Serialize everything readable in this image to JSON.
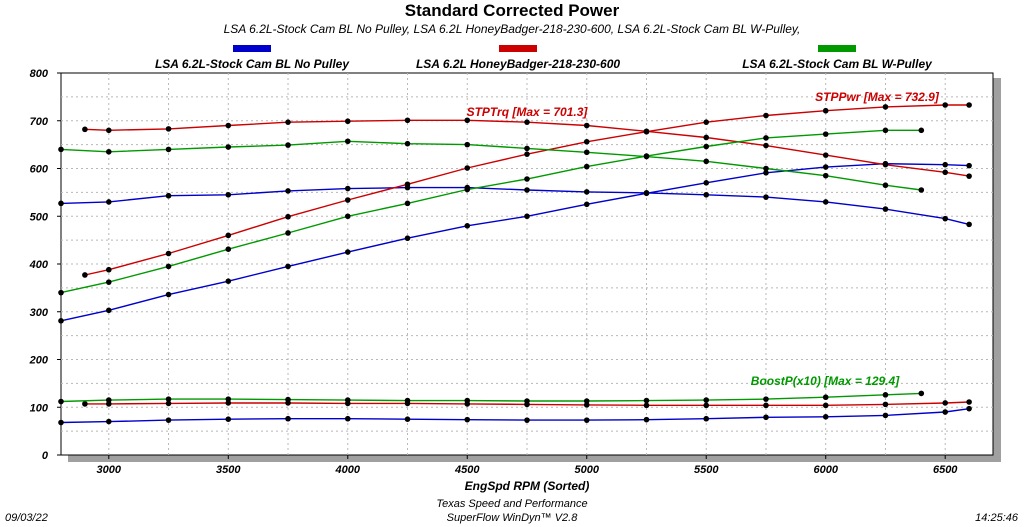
{
  "header": {
    "title": "Standard Corrected Power",
    "subtitle": "LSA 6.2L-Stock Cam BL No Pulley, LSA 6.2L HoneyBadger-218-230-600, LSA 6.2L-Stock Cam BL W-Pulley,"
  },
  "legend": [
    {
      "label": "LSA 6.2L-Stock Cam BL No Pulley",
      "color": "#0000cc"
    },
    {
      "label": "LSA 6.2L HoneyBadger-218-230-600",
      "color": "#cc0000"
    },
    {
      "label": "LSA 6.2L-Stock Cam BL W-Pulley",
      "color": "#009900"
    }
  ],
  "footer": {
    "date": "09/03/22",
    "time": "14:25:46",
    "company": "Texas Speed and Performance",
    "software": "SuperFlow WinDyn™  V2.8"
  },
  "chart_data": {
    "type": "line",
    "xlabel": "EngSpd  RPM   (Sorted)",
    "ylabel": "",
    "xlim": [
      2800,
      6700
    ],
    "ylim": [
      0,
      800
    ],
    "xticks": [
      3000,
      3500,
      4000,
      4500,
      5000,
      5500,
      6000,
      6500
    ],
    "yticks": [
      0,
      100,
      200,
      300,
      400,
      500,
      600,
      700,
      800
    ],
    "grid": true,
    "annotations": [
      {
        "text": "STPTrq [Max = 701.3]",
        "color": "#cc0000"
      },
      {
        "text": "STPPwr [Max = 732.9]",
        "color": "#cc0000"
      },
      {
        "text": "BoostP(x10) [Max = 129.4]",
        "color": "#009900"
      }
    ],
    "series": [
      {
        "name": "LSA 6.2L-Stock Cam BL No Pulley",
        "measure": "STPTrq",
        "color": "#0000cc",
        "x": [
          2800,
          3000,
          3250,
          3500,
          3750,
          4000,
          4250,
          4500,
          4750,
          5000,
          5250,
          5500,
          5750,
          6000,
          6250,
          6500,
          6600
        ],
        "y": [
          527,
          530,
          543,
          545,
          553,
          558,
          560,
          560,
          555,
          551,
          549,
          545,
          540,
          530,
          515,
          495,
          483
        ]
      },
      {
        "name": "LSA 6.2L-Stock Cam BL No Pulley",
        "measure": "STPPwr",
        "color": "#0000cc",
        "x": [
          2800,
          3000,
          3250,
          3500,
          3750,
          4000,
          4250,
          4500,
          4750,
          5000,
          5250,
          5500,
          5750,
          6000,
          6250,
          6500,
          6600
        ],
        "y": [
          281,
          303,
          336,
          364,
          395,
          425,
          454,
          480,
          500,
          525,
          548,
          570,
          591,
          603,
          610,
          608,
          606
        ]
      },
      {
        "name": "LSA 6.2L-Stock Cam BL No Pulley",
        "measure": "BoostP(x10)",
        "color": "#0000cc",
        "x": [
          2800,
          3000,
          3250,
          3500,
          3750,
          4000,
          4250,
          4500,
          4750,
          5000,
          5250,
          5500,
          5750,
          6000,
          6250,
          6500,
          6600
        ],
        "y": [
          68,
          70,
          73,
          75,
          76,
          76,
          75,
          74,
          73,
          73,
          74,
          76,
          79,
          80,
          83,
          90,
          97
        ]
      },
      {
        "name": "LSA 6.2L HoneyBadger-218-230-600",
        "measure": "STPTrq",
        "color": "#cc0000",
        "x": [
          2900,
          3000,
          3250,
          3500,
          3750,
          4000,
          4250,
          4500,
          4750,
          5000,
          5250,
          5500,
          5750,
          6000,
          6250,
          6500,
          6600
        ],
        "y": [
          682,
          680,
          683,
          690,
          697,
          699,
          701,
          701,
          697,
          690,
          678,
          665,
          648,
          628,
          608,
          592,
          584
        ]
      },
      {
        "name": "LSA 6.2L HoneyBadger-218-230-600",
        "measure": "STPPwr",
        "color": "#cc0000",
        "x": [
          2900,
          3000,
          3250,
          3500,
          3750,
          4000,
          4250,
          4500,
          4750,
          5000,
          5250,
          5500,
          5750,
          6000,
          6250,
          6500,
          6600
        ],
        "y": [
          377,
          388,
          422,
          460,
          499,
          534,
          567,
          601,
          630,
          656,
          677,
          697,
          711,
          721,
          729,
          733,
          733
        ]
      },
      {
        "name": "LSA 6.2L HoneyBadger-218-230-600",
        "measure": "BoostP(x10)",
        "color": "#cc0000",
        "x": [
          2900,
          3000,
          3250,
          3500,
          3750,
          4000,
          4250,
          4500,
          4750,
          5000,
          5250,
          5500,
          5750,
          6000,
          6250,
          6500,
          6600
        ],
        "y": [
          107,
          107,
          108,
          109,
          109,
          108,
          108,
          107,
          106,
          105,
          104,
          104,
          104,
          104,
          106,
          109,
          111
        ]
      },
      {
        "name": "LSA 6.2L-Stock Cam BL W-Pulley",
        "measure": "STPTrq",
        "color": "#009900",
        "x": [
          2800,
          3000,
          3250,
          3500,
          3750,
          4000,
          4250,
          4500,
          4750,
          5000,
          5250,
          5500,
          5750,
          6000,
          6250,
          6400
        ],
        "y": [
          640,
          635,
          640,
          645,
          649,
          657,
          652,
          650,
          642,
          634,
          625,
          615,
          600,
          585,
          565,
          555
        ]
      },
      {
        "name": "LSA 6.2L-Stock Cam BL W-Pulley",
        "measure": "STPPwr",
        "color": "#009900",
        "x": [
          2800,
          3000,
          3250,
          3500,
          3750,
          4000,
          4250,
          4500,
          4750,
          5000,
          5250,
          5500,
          5750,
          6000,
          6250,
          6400
        ],
        "y": [
          340,
          362,
          395,
          431,
          465,
          500,
          527,
          556,
          578,
          604,
          626,
          646,
          664,
          672,
          680,
          680
        ]
      },
      {
        "name": "LSA 6.2L-Stock Cam BL W-Pulley",
        "measure": "BoostP(x10)",
        "color": "#009900",
        "x": [
          2800,
          3000,
          3250,
          3500,
          3750,
          4000,
          4250,
          4500,
          4750,
          5000,
          5250,
          5500,
          5750,
          6000,
          6250,
          6400
        ],
        "y": [
          112,
          115,
          117,
          117,
          116,
          115,
          114,
          114,
          113,
          113,
          114,
          115,
          117,
          121,
          126,
          129
        ]
      }
    ]
  }
}
